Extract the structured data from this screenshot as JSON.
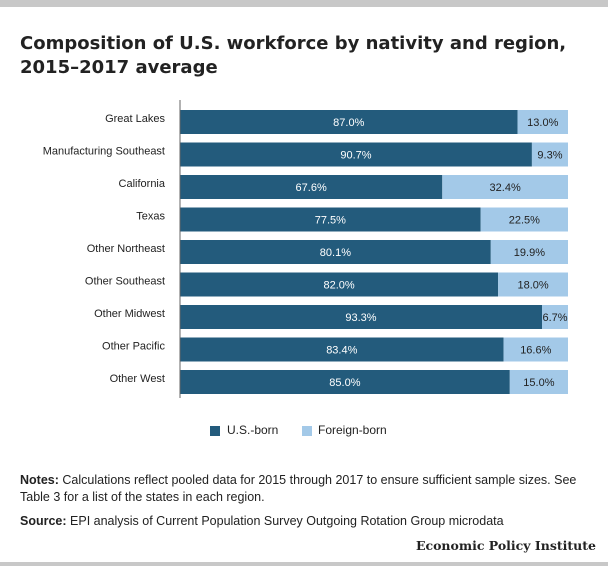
{
  "title": "Composition of U.S. workforce by nativity and region, 2015–2017 average",
  "notes": {
    "label": "Notes:",
    "text": " Calculations reflect pooled data for 2015 through 2017 to ensure sufficient sample sizes. See Table 3 for a list of the states in each region."
  },
  "source": {
    "label": "Source:",
    "text": " EPI analysis of Current Population Survey Outgoing Rotation Group microdata"
  },
  "brand": "Economic Policy Institute",
  "colors": {
    "us_born": "#235b7c",
    "foreign_born": "#a3c9e8"
  },
  "chart_data": {
    "type": "bar",
    "orientation": "horizontal",
    "stacked": true,
    "categories": [
      "Great Lakes",
      "Manufacturing Southeast",
      "California",
      "Texas",
      "Other Northeast",
      "Other Southeast",
      "Other Midwest",
      "Other Pacific",
      "Other West"
    ],
    "series": [
      {
        "name": "U.S.-born",
        "values": [
          87.0,
          90.7,
          67.6,
          77.5,
          80.1,
          82.0,
          93.3,
          83.4,
          85.0
        ],
        "labels": [
          "87.0%",
          "90.7%",
          "67.6%",
          "77.5%",
          "80.1%",
          "82.0%",
          "93.3%",
          "83.4%",
          "85.0%"
        ]
      },
      {
        "name": "Foreign-born",
        "values": [
          13.0,
          9.3,
          32.4,
          22.5,
          19.9,
          18.0,
          6.7,
          16.6,
          15.0
        ],
        "labels": [
          "13.0%",
          "9.3%",
          "32.4%",
          "22.5%",
          "19.9%",
          "18.0%",
          "6.7%",
          "16.6%",
          "15.0%"
        ]
      }
    ],
    "xlim": [
      0,
      100
    ],
    "legend": "bottom-center",
    "grid": false
  }
}
